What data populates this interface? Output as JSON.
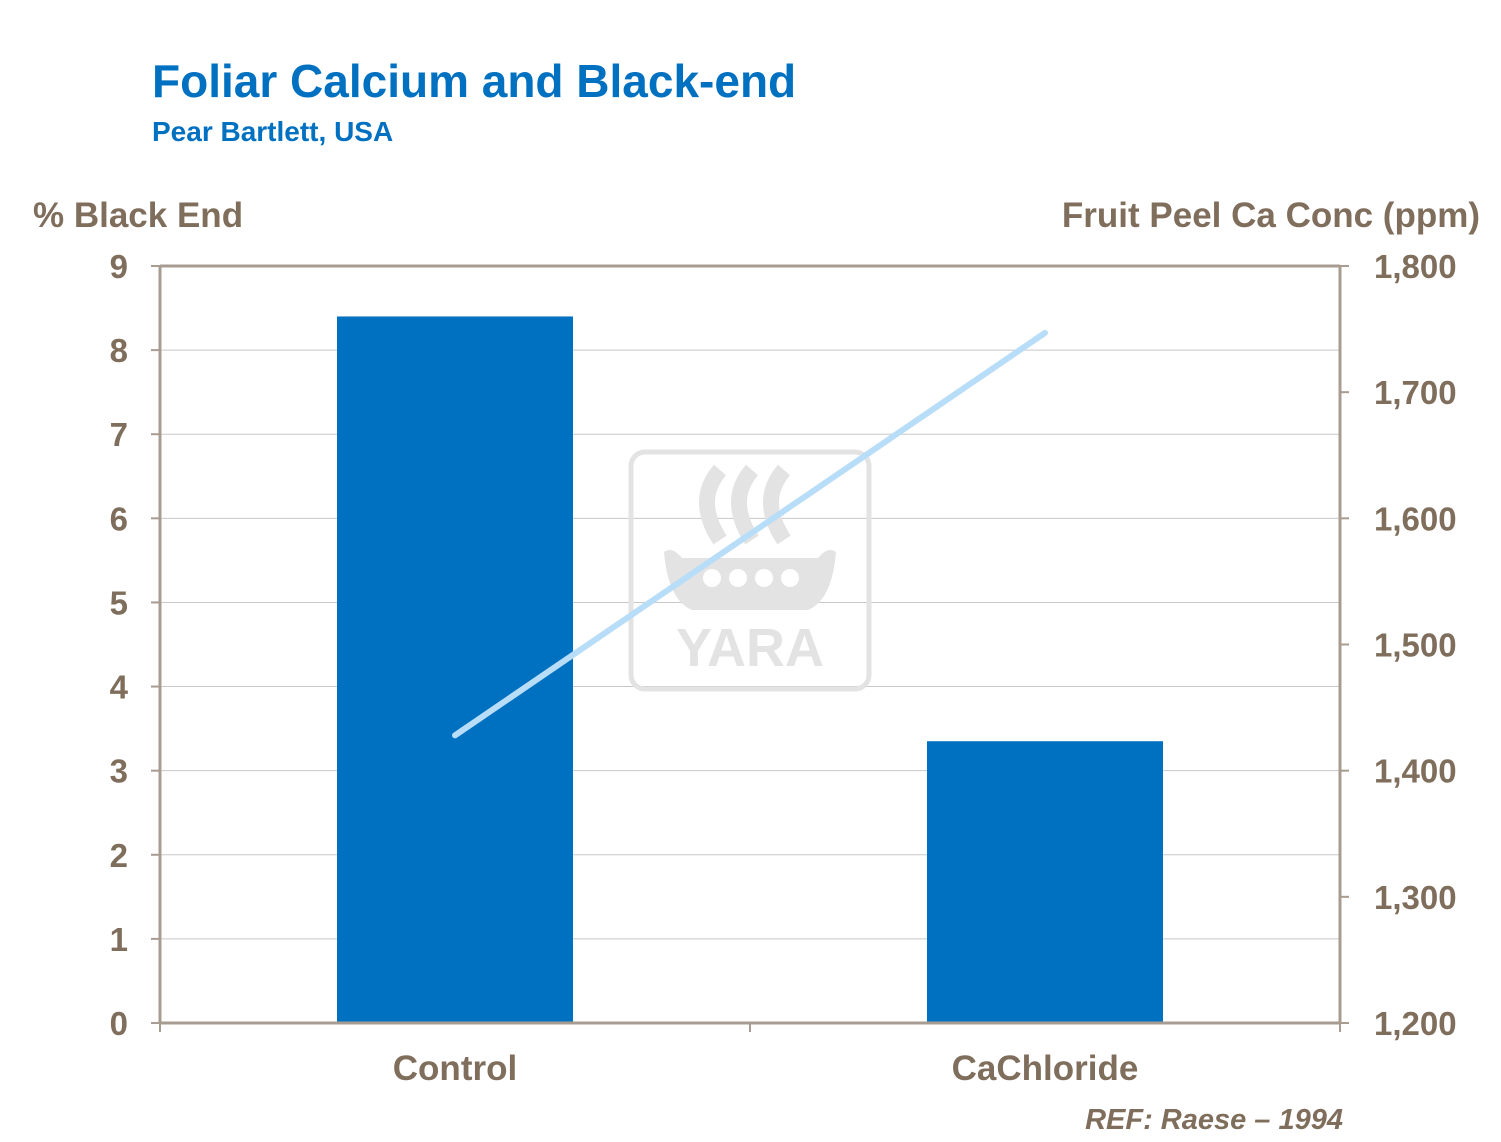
{
  "chart_data": {
    "type": "bar",
    "title": "Foliar Calcium and Black-end",
    "subtitle": "Pear Bartlett, USA",
    "categories": [
      "Control",
      "CaChloride"
    ],
    "series": [
      {
        "name": "% Black End",
        "type": "bar",
        "axis": "left",
        "values": [
          8.4,
          3.35
        ],
        "color": "#0070C0"
      },
      {
        "name": "Fruit Peel Ca Conc (ppm)",
        "type": "line",
        "axis": "right",
        "values": [
          1428,
          1747
        ],
        "color": "#B7DDF8"
      }
    ],
    "ylabel_left": "% Black End",
    "ylabel_right": "Fruit Peel Ca Conc (ppm)",
    "ylim_left": [
      0,
      9
    ],
    "yticks_left": [
      "0",
      "1",
      "2",
      "3",
      "4",
      "5",
      "6",
      "7",
      "8",
      "9"
    ],
    "ylim_right": [
      1200,
      1800
    ],
    "yticks_right": [
      "1,200",
      "1,300",
      "1,400",
      "1,500",
      "1,600",
      "1,700",
      "1,800"
    ],
    "grid": true,
    "watermark": "YARA",
    "reference": "REF: Raese – 1994",
    "colors": {
      "axis": "#A89C90",
      "text": "#7F6E5C",
      "grid": "#C8C8C8",
      "title": "#0070C0"
    }
  }
}
